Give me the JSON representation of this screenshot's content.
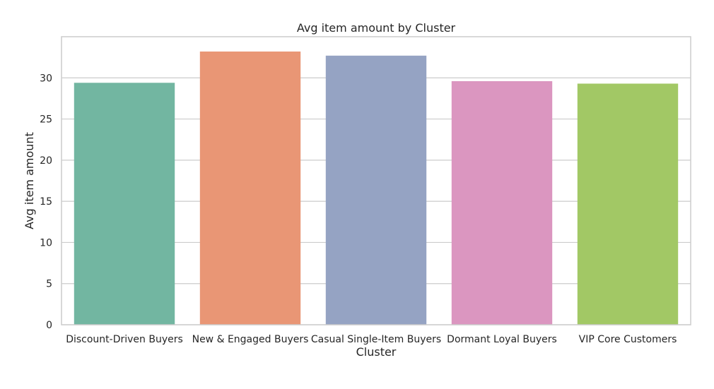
{
  "chart_data": {
    "type": "bar",
    "title": "Avg item amount by Cluster",
    "xlabel": "Cluster",
    "ylabel": "Avg item amount",
    "categories": [
      "Discount-Driven Buyers",
      "New & Engaged Buyers",
      "Casual Single-Item Buyers",
      "Dormant Loyal Buyers",
      "VIP Core Customers"
    ],
    "values": [
      29.4,
      33.2,
      32.7,
      29.6,
      29.3
    ],
    "colors": [
      "#72b6a1",
      "#e99675",
      "#95a3c3",
      "#db96c0",
      "#a2c865"
    ],
    "ylim": [
      0,
      35
    ],
    "yticks": [
      0,
      5,
      10,
      15,
      20,
      25,
      30
    ],
    "grid": "horizontal",
    "frame_color": "#cccccc",
    "grid_color": "#cccccc"
  }
}
